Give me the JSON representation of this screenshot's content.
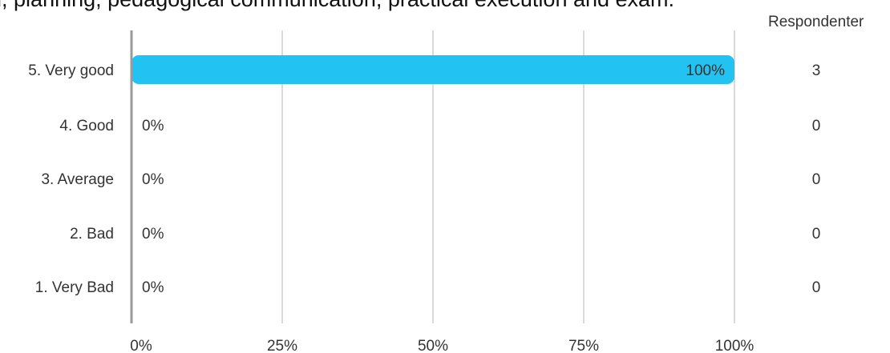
{
  "title": "ed, planning, pedagogical communication, practical execution and exam.",
  "respondents_header": "Respondenter",
  "colors": {
    "bar": "#22c3f2",
    "grid": "#b4b4b4",
    "axis": "#9a9a9a",
    "text": "#333333"
  },
  "chart_data": {
    "type": "bar",
    "orientation": "horizontal",
    "categories": [
      "5. Very good",
      "4. Good",
      "3. Average",
      "2. Bad",
      "1. Very Bad"
    ],
    "values": [
      100,
      0,
      0,
      0,
      0
    ],
    "value_labels": [
      "100%",
      "0%",
      "0%",
      "0%",
      "0%"
    ],
    "respondents": [
      3,
      0,
      0,
      0,
      0
    ],
    "xlim": [
      0,
      100
    ],
    "xticks": [
      "0%",
      "25%",
      "50%",
      "75%",
      "100%"
    ],
    "grid": true
  }
}
